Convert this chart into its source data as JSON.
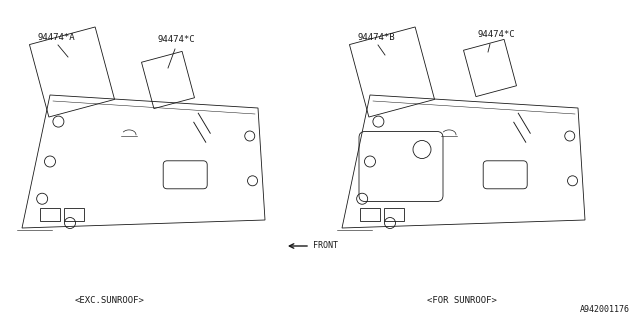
{
  "bg": "#ffffff",
  "lc": "#1a1a1a",
  "lw": 0.6,
  "diagram_id": "A942001176",
  "left_label": "<EXC.SUNROOF>",
  "right_label": "<FOR SUNROOF>",
  "front_label": "FRONT",
  "part_A": "94474*A",
  "part_B": "94474*B",
  "part_C_left": "94474*C",
  "part_C_right": "94474*C",
  "figsize": [
    6.4,
    3.2
  ],
  "dpi": 100
}
